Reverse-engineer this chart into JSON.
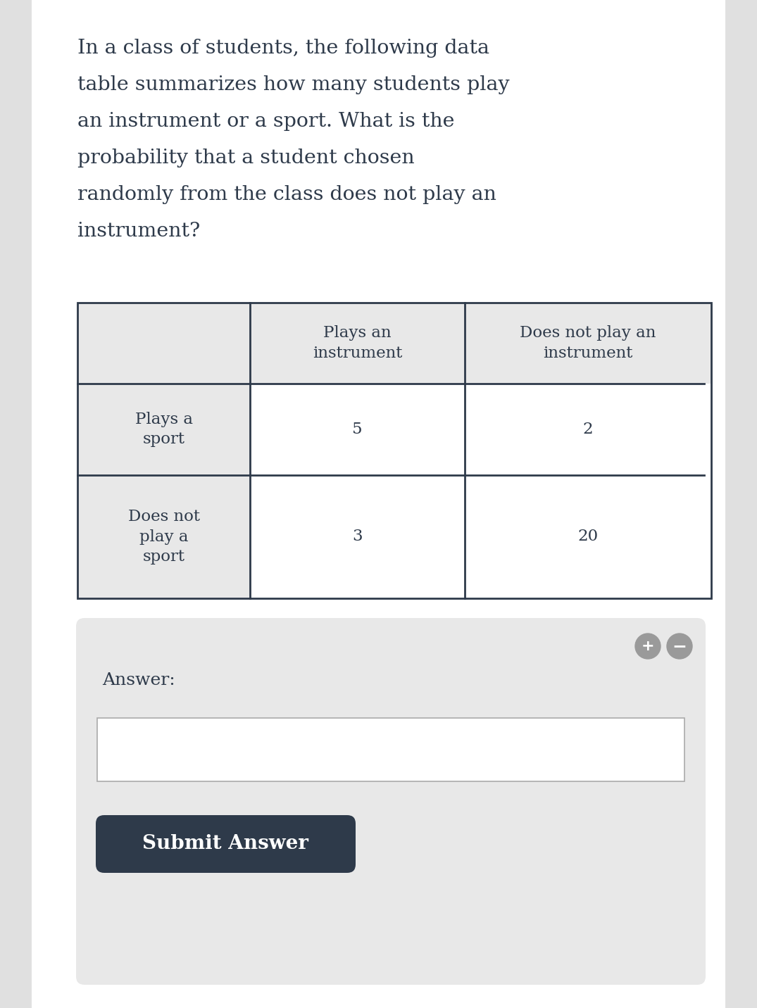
{
  "question_text_lines": [
    "In a class of students, the following data",
    "table summarizes how many students play",
    "an instrument or a sport. What is the",
    "probability that a student chosen",
    "randomly from the class does not play an",
    "instrument?"
  ],
  "bg_color": "#ffffff",
  "outer_bg_color": "#e0e0e0",
  "question_text_color": "#2e3a4a",
  "question_font_size": 20.5,
  "table": {
    "header_row": [
      "",
      "Plays an\ninstrument",
      "Does not play an\ninstrument"
    ],
    "rows": [
      [
        "Plays a\nsport",
        "5",
        "2"
      ],
      [
        "Does not\nplay a\nsport",
        "3",
        "20"
      ]
    ],
    "header_bg": "#e8e8e8",
    "cell_bg": "#ffffff",
    "border_color": "#2e3a4a",
    "text_color": "#2e3a4a",
    "font_size": 16.5
  },
  "answer_section": {
    "bg_color": "#e8e8e8",
    "label": "Answer:",
    "label_color": "#2e3a4a",
    "label_font_size": 18,
    "input_bg": "#ffffff",
    "input_border": "#aaaaaa"
  },
  "submit_button": {
    "bg_color": "#2e3a4a",
    "text": "Submit Answer",
    "text_color": "#ffffff",
    "font_size": 20
  },
  "plus_minus_color": "#9a9a9a"
}
